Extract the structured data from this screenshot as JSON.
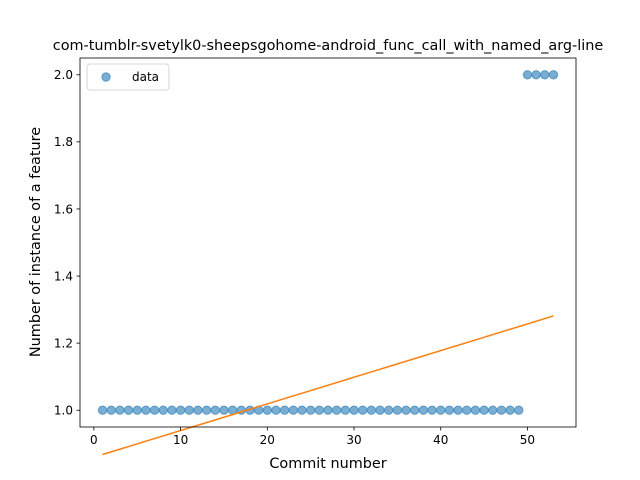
{
  "chart_data": {
    "type": "scatter",
    "title": "com-tumblr-svetylk0-sheepsgohome-android_func_call_with_named_arg-line",
    "xlabel": "Commit number",
    "ylabel": "Number of instance of a feature",
    "xlim": [
      -1.6,
      55.6
    ],
    "ylim": [
      0.95,
      2.05
    ],
    "x_ticks": [
      0,
      10,
      20,
      30,
      40,
      50
    ],
    "y_ticks": [
      1.0,
      1.2,
      1.4,
      1.6,
      1.8,
      2.0
    ],
    "x_tick_labels": [
      "0",
      "10",
      "20",
      "30",
      "40",
      "50"
    ],
    "y_tick_labels": [
      "1.0",
      "1.2",
      "1.4",
      "1.6",
      "1.8",
      "2.0"
    ],
    "grid": false,
    "legend": {
      "position": "top-left",
      "entries": [
        "data"
      ]
    },
    "series": [
      {
        "name": "data",
        "kind": "scatter",
        "color": "#1f77b4",
        "x": [
          1,
          2,
          3,
          4,
          5,
          6,
          7,
          8,
          9,
          10,
          11,
          12,
          13,
          14,
          15,
          16,
          17,
          18,
          19,
          20,
          21,
          22,
          23,
          24,
          25,
          26,
          27,
          28,
          29,
          30,
          31,
          32,
          33,
          34,
          35,
          36,
          37,
          38,
          39,
          40,
          41,
          42,
          43,
          44,
          45,
          46,
          47,
          48,
          49,
          50,
          51,
          52,
          53
        ],
        "y": [
          1,
          1,
          1,
          1,
          1,
          1,
          1,
          1,
          1,
          1,
          1,
          1,
          1,
          1,
          1,
          1,
          1,
          1,
          1,
          1,
          1,
          1,
          1,
          1,
          1,
          1,
          1,
          1,
          1,
          1,
          1,
          1,
          1,
          1,
          1,
          1,
          1,
          1,
          1,
          1,
          1,
          1,
          1,
          1,
          1,
          1,
          1,
          1,
          1,
          2,
          2,
          2,
          2
        ]
      },
      {
        "kind": "line",
        "color": "#ff7f0e",
        "x": [
          1,
          53
        ],
        "y": [
          0.868,
          1.281
        ]
      }
    ]
  }
}
